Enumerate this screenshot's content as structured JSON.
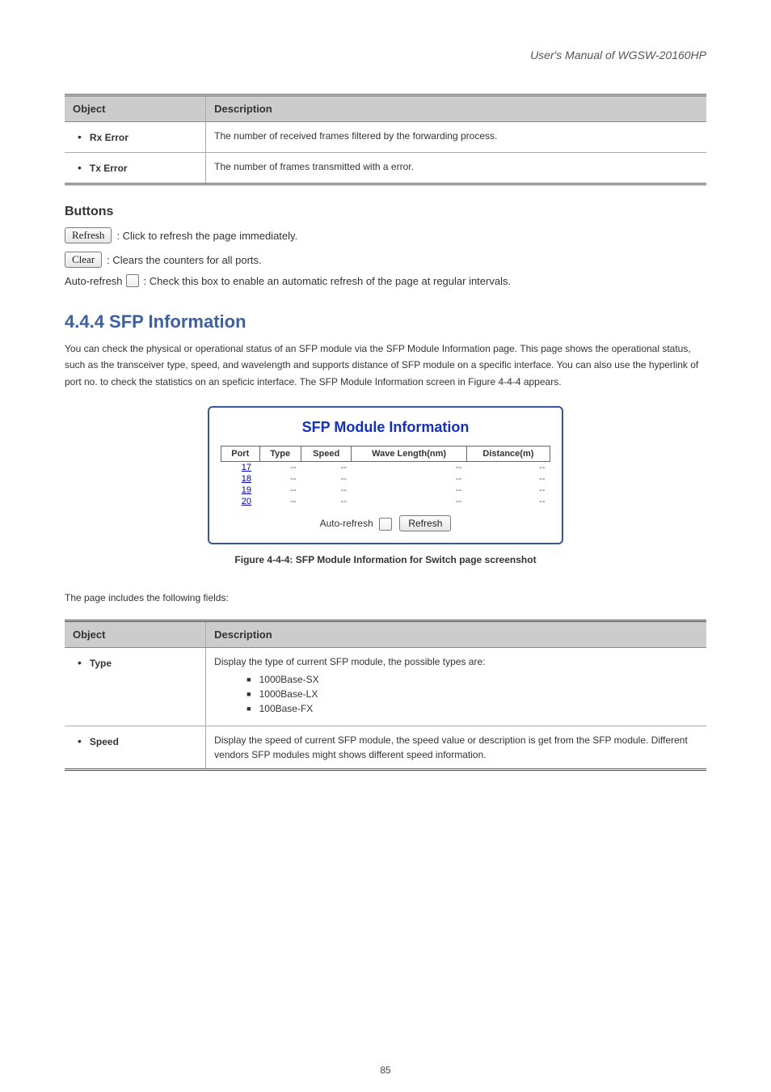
{
  "doc_title": "User's Manual of WGSW-20160HP",
  "table1": {
    "heading_object": "Object",
    "heading_description": "Description",
    "rows": [
      {
        "object": "Rx Error",
        "description": "The number of received frames filtered by the forwarding process."
      },
      {
        "object": "Tx Error",
        "description": "The number of frames transmitted with a error."
      }
    ]
  },
  "buttons_heading": "Buttons",
  "refresh_btn_label": "Refresh",
  "refresh_btn_desc": ": Click to refresh the page immediately.",
  "clear_btn_label": "Clear",
  "clear_btn_desc": ": Clears the counters for all ports.",
  "autorefresh_label": "Auto-refresh",
  "autorefresh_desc": ": Check this box to enable an automatic refresh of the page at regular intervals.",
  "section_heading": "4.4.4 SFP Information",
  "section_text": "You can check the physical or operational status of an SFP module via the SFP Module Information page. This page shows the operational status, such as the transceiver type, speed, and wavelength and supports distance of SFP module on a specific interface. You can also use the hyperlink of port no. to check the statistics on an speficic interface. The SFP Module Information screen in Figure 4-4-4 appears.",
  "sfp_panel": {
    "title": "SFP Module Information",
    "columns": [
      "Port",
      "Type",
      "Speed",
      "Wave Length(nm)",
      "Distance(m)"
    ],
    "rows": [
      {
        "port": "17",
        "type": "--",
        "speed": "--",
        "wave": "--",
        "dist": "--"
      },
      {
        "port": "18",
        "type": "--",
        "speed": "--",
        "wave": "--",
        "dist": "--"
      },
      {
        "port": "19",
        "type": "--",
        "speed": "--",
        "wave": "--",
        "dist": "--"
      },
      {
        "port": "20",
        "type": "--",
        "speed": "--",
        "wave": "--",
        "dist": "--"
      }
    ],
    "autorefresh_label": "Auto-refresh",
    "refresh_btn_label": "Refresh"
  },
  "figure_label": "Figure 4-4-4: SFP Module Information for Switch page screenshot",
  "table2_intro": "The page includes the following fields:",
  "table2": {
    "heading_object": "Object",
    "heading_description": "Description",
    "rows": [
      {
        "object": "Type",
        "description": "Display the type of current SFP module, the possible types are:",
        "sublist": [
          "1000Base-SX",
          "1000Base-LX",
          "100Base-FX"
        ]
      },
      {
        "object": "Speed",
        "description": "Display the speed of current SFP module, the speed value or description is get from the SFP module. Different vendors SFP modules might shows different speed information."
      }
    ]
  },
  "page_number": "85"
}
